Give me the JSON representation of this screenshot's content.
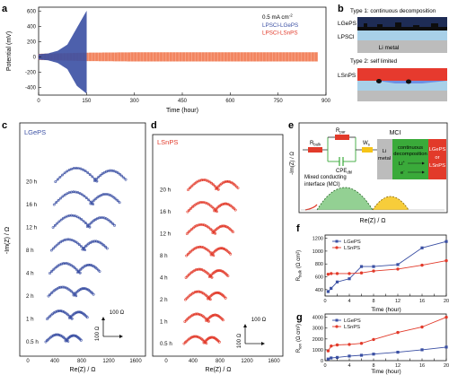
{
  "panels": {
    "a": {
      "letter": "a",
      "ylabel": "Potential (mV)",
      "xlabel": "Time (hour)",
      "yticks": [
        "600",
        "400",
        "200",
        "0",
        "-200",
        "-400"
      ],
      "xticks": [
        "0",
        "150",
        "300",
        "450",
        "600",
        "750",
        "900"
      ],
      "legend": {
        "current": "0.5 mA cm",
        "current_sup": "-2",
        "series1": "LPSCl-LGePS",
        "series2": "LPSCl-LSnPS"
      }
    },
    "b": {
      "letter": "b",
      "type1_title": "Type 1: continuous decomposition",
      "type2_title": "Type 2: self limited",
      "lgeps": "LGePS",
      "lpscl": "LPSCl",
      "li_metal": "Li metal",
      "lsnps": "LSnPS"
    },
    "c": {
      "letter": "c",
      "title": "LGePS",
      "ylabel": "-Im(Z) / Ω",
      "xlabel": "Re(Z) / Ω",
      "xticks": [
        "0",
        "400",
        "800",
        "1200",
        "1600"
      ],
      "times": [
        "20 h",
        "16 h",
        "12 h",
        "8 h",
        "4 h",
        "2 h",
        "1 h",
        "0.5 h"
      ],
      "scale_x": "100 Ω",
      "scale_y": "100 Ω"
    },
    "d": {
      "letter": "d",
      "title": "LSnPS",
      "xlabel": "Re(Z) / Ω",
      "xticks": [
        "0",
        "400",
        "800",
        "1200",
        "1600"
      ],
      "times": [
        "20 h",
        "16 h",
        "12 h",
        "8 h",
        "4 h",
        "2 h",
        "1 h",
        "0.5 h"
      ],
      "scale_x": "100 Ω",
      "scale_y": "100 Ω"
    },
    "e": {
      "letter": "e",
      "ylabel": "-Im(Z) / Ω",
      "xlabel": "Re(Z) / Ω",
      "r_bulk": "R",
      "r_bulk_sub": "bulk",
      "r_par": "R",
      "r_par_sub": "par",
      "cpe": "CPE",
      "cpe_sub": "dbl",
      "w": "W",
      "w_sub": "s",
      "mci_long_1": "Mixed conducting",
      "mci_long_2": "interface (MCI)",
      "mci": "MCI",
      "li": "Li",
      "metal": "metal",
      "cd1": "continuous",
      "cd2": "decomposition",
      "li_ion": "Li",
      "e_minus": "e",
      "lgeps_or_1": "LGePS",
      "lgeps_or_2": "or",
      "lgeps_or_3": "LSnPS"
    },
    "f": {
      "letter": "f",
      "ylabel": "R",
      "ylabel_sub": "bulk",
      "ylabel_unit": "(Ω cm²)",
      "xlabel": "Time (hour)",
      "yticks": [
        "1200",
        "1000",
        "800",
        "600",
        "400"
      ],
      "xticks": [
        "0",
        "2",
        "4",
        "6",
        "8",
        "10",
        "12",
        "14",
        "16",
        "18",
        "20"
      ],
      "legend": [
        "LGePS",
        "LSnPS"
      ]
    },
    "g": {
      "letter": "g",
      "ylabel": "R",
      "ylabel_sub": "ion",
      "ylabel_unit": "(Ω cm²)",
      "xlabel": "Time (hour)",
      "yticks": [
        "4000",
        "3000",
        "2000",
        "1000",
        "0"
      ],
      "xticks": [
        "0",
        "2",
        "4",
        "6",
        "8",
        "10",
        "12",
        "14",
        "16",
        "18",
        "20"
      ],
      "legend": [
        "LGePS",
        "LSnPS"
      ]
    }
  },
  "colors": {
    "blue": "#3a4fa3",
    "red": "#e23a2a",
    "orange": "#f06a3c",
    "green": "#3aaa3a",
    "black": "#111111"
  },
  "chart_data": [
    {
      "type": "line",
      "panel": "a",
      "xlabel": "Time (hour)",
      "ylabel": "Potential (mV)",
      "xlim": [
        0,
        900
      ],
      "ylim": [
        -500,
        650
      ],
      "series": [
        {
          "name": "LPSCl-LGePS",
          "envelope_x": [
            0,
            30,
            60,
            90,
            120,
            150
          ],
          "envelope_upper": [
            35,
            45,
            80,
            160,
            380,
            600
          ],
          "envelope_lower": [
            -35,
            -45,
            -80,
            -160,
            -380,
            -480
          ]
        },
        {
          "name": "LPSCl-LSnPS",
          "envelope_x": [
            0,
            150,
            300,
            450,
            600,
            750,
            875
          ],
          "envelope_upper": [
            40,
            55,
            60,
            60,
            60,
            60,
            60
          ],
          "envelope_lower": [
            -40,
            -55,
            -60,
            -60,
            -60,
            -60,
            -60
          ]
        }
      ]
    },
    {
      "type": "line",
      "panel": "f",
      "xlabel": "Time (hour)",
      "ylabel": "R bulk (Ω cm²)",
      "xlim": [
        0,
        20
      ],
      "ylim": [
        300,
        1250
      ],
      "x": [
        0.5,
        1,
        2,
        4,
        6,
        8,
        12,
        16,
        20
      ],
      "series": [
        {
          "name": "LGePS",
          "values": [
            370,
            420,
            520,
            570,
            760,
            760,
            790,
            1050,
            1150
          ]
        },
        {
          "name": "LSnPS",
          "values": [
            640,
            650,
            650,
            650,
            660,
            690,
            720,
            780,
            850
          ]
        }
      ]
    },
    {
      "type": "line",
      "panel": "g",
      "xlabel": "Time (hour)",
      "ylabel": "R ion (Ω cm²)",
      "xlim": [
        0,
        20
      ],
      "ylim": [
        0,
        4300
      ],
      "x": [
        0.5,
        1,
        2,
        4,
        6,
        8,
        12,
        16,
        20
      ],
      "series": [
        {
          "name": "LGePS",
          "values": [
            150,
            250,
            300,
            420,
            500,
            600,
            780,
            1000,
            1250
          ]
        },
        {
          "name": "LSnPS",
          "values": [
            900,
            1350,
            1450,
            1500,
            1600,
            1950,
            2600,
            3100,
            4000
          ]
        }
      ]
    }
  ]
}
